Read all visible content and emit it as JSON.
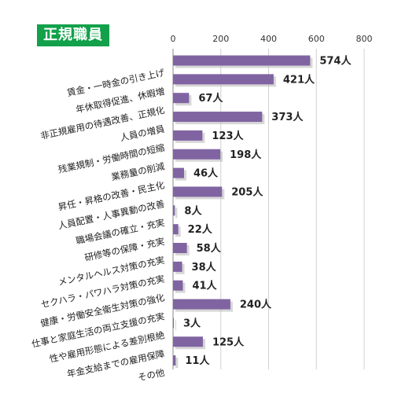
{
  "badge": {
    "label": "正規職員"
  },
  "chart_data": {
    "type": "bar",
    "orientation": "horizontal",
    "title": "",
    "xlabel": "",
    "ylabel": "",
    "xlim": [
      0,
      800
    ],
    "ticks": [
      0,
      200,
      400,
      600,
      800
    ],
    "grid": true,
    "value_suffix": "人",
    "bar_color": "#8064a2",
    "categories": [
      "賃金・一時金の引き上げ",
      "年休取得促進、休暇増",
      "非正規雇用の待遇改善、正規化",
      "人員の増員",
      "残業規制・労働時間の短縮",
      "業務量の削減",
      "昇任・昇格の改善・民主化",
      "人員配置・人事異動の改善",
      "職場会議の確立・充実",
      "研修等の保障・充実",
      "メンタルヘルス対策の充実",
      "セクハラ・パワハラ対策の充実",
      "健康・労働安全衛生対策の強化",
      "仕事と家庭生活の両立支援の充実",
      "性や雇用形態による差別根絶",
      "年金支給までの雇用保障",
      "その他"
    ],
    "values": [
      574,
      421,
      67,
      373,
      123,
      198,
      46,
      205,
      8,
      22,
      58,
      38,
      41,
      240,
      3,
      125,
      11
    ]
  }
}
